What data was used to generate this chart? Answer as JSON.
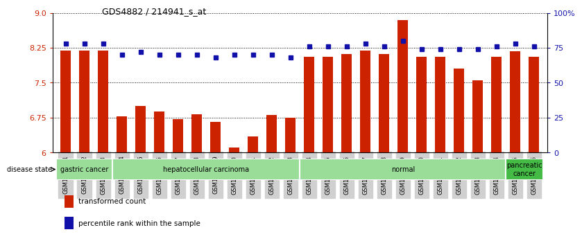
{
  "title": "GDS4882 / 214941_s_at",
  "samples": [
    "GSM1200291",
    "GSM1200292",
    "GSM1200293",
    "GSM1200294",
    "GSM1200295",
    "GSM1200296",
    "GSM1200297",
    "GSM1200298",
    "GSM1200299",
    "GSM1200300",
    "GSM1200301",
    "GSM1200302",
    "GSM1200303",
    "GSM1200304",
    "GSM1200305",
    "GSM1200306",
    "GSM1200307",
    "GSM1200308",
    "GSM1200309",
    "GSM1200310",
    "GSM1200311",
    "GSM1200312",
    "GSM1200313",
    "GSM1200314",
    "GSM1200315",
    "GSM1200316"
  ],
  "transformed_count": [
    8.19,
    8.19,
    8.19,
    6.78,
    7.0,
    6.88,
    6.72,
    6.82,
    6.65,
    6.1,
    6.35,
    6.8,
    6.75,
    8.05,
    8.05,
    8.12,
    8.19,
    8.12,
    8.85,
    8.05,
    8.05,
    7.8,
    7.55,
    8.05,
    8.18,
    8.05
  ],
  "percentile_rank": [
    78,
    78,
    78,
    70,
    72,
    70,
    70,
    70,
    68,
    70,
    70,
    70,
    68,
    76,
    76,
    76,
    78,
    76,
    80,
    74,
    74,
    74,
    74,
    76,
    78,
    76
  ],
  "groups": [
    {
      "label": "gastric cancer",
      "start": 0,
      "end": 3,
      "color": "#99dd99"
    },
    {
      "label": "hepatocellular carcinoma",
      "start": 3,
      "end": 13,
      "color": "#99dd99"
    },
    {
      "label": "normal",
      "start": 13,
      "end": 24,
      "color": "#99dd99"
    },
    {
      "label": "pancreatic\ncancer",
      "start": 24,
      "end": 26,
      "color": "#44bb44"
    }
  ],
  "ylim_left": [
    6.0,
    9.0
  ],
  "yticks_left": [
    6.0,
    6.75,
    7.5,
    8.25,
    9.0
  ],
  "ylim_right": [
    0,
    100
  ],
  "yticks_right": [
    0,
    25,
    50,
    75,
    100
  ],
  "bar_color": "#cc2200",
  "dot_color": "#1111aa",
  "bg_color": "#ffffff",
  "tick_bg_color": "#d0d0d0",
  "legend_labels": [
    "transformed count",
    "percentile rank within the sample"
  ]
}
